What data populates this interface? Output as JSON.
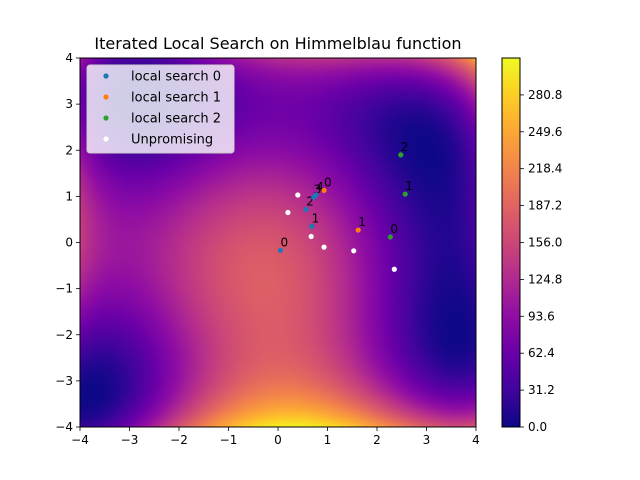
{
  "chart_data": {
    "type": "scatter",
    "title": "Iterated Local Search on Himmelblau function",
    "xlim": [
      -4,
      4
    ],
    "ylim": [
      -4,
      4
    ],
    "xticks": [
      -4,
      -3,
      -2,
      -1,
      0,
      1,
      2,
      3,
      4
    ],
    "yticks": [
      -4,
      -3,
      -2,
      -1,
      0,
      1,
      2,
      3,
      4
    ],
    "background": {
      "kind": "heatmap",
      "function": "himmelblau",
      "colormap": "plasma",
      "vmin": 0.0,
      "vmax": 312.0
    },
    "colorbar": {
      "ticks": [
        "0.0",
        "31.2",
        "62.4",
        "93.6",
        "124.8",
        "156.0",
        "187.2",
        "218.4",
        "249.6",
        "280.8"
      ]
    },
    "legend": {
      "placement": "top-left"
    },
    "series": [
      {
        "name": "local search 0",
        "color": "#1f77b4",
        "points": [
          {
            "x": 0.05,
            "y": -0.17,
            "label": "0"
          },
          {
            "x": 0.68,
            "y": 0.35,
            "label": "1"
          },
          {
            "x": 0.57,
            "y": 0.72,
            "label": "2"
          },
          {
            "x": 0.72,
            "y": 0.98,
            "label": "3"
          },
          {
            "x": 0.77,
            "y": 1.03,
            "label": "4"
          }
        ]
      },
      {
        "name": "local search 1",
        "color": "#ff7f0e",
        "points": [
          {
            "x": 0.93,
            "y": 1.13,
            "label": "0"
          },
          {
            "x": 1.62,
            "y": 0.27,
            "label": "1"
          }
        ]
      },
      {
        "name": "local search 2",
        "color": "#2ca02c",
        "points": [
          {
            "x": 2.27,
            "y": 0.12,
            "label": "0"
          },
          {
            "x": 2.57,
            "y": 1.05,
            "label": "1"
          },
          {
            "x": 2.48,
            "y": 1.9,
            "label": "2"
          }
        ]
      },
      {
        "name": "Unpromising",
        "color": "#ffffff",
        "points": [
          {
            "x": 0.4,
            "y": 1.03
          },
          {
            "x": 0.2,
            "y": 0.65
          },
          {
            "x": 0.67,
            "y": 0.13
          },
          {
            "x": 0.93,
            "y": -0.1
          },
          {
            "x": 1.53,
            "y": -0.18
          },
          {
            "x": 2.35,
            "y": -0.58
          }
        ]
      }
    ]
  }
}
